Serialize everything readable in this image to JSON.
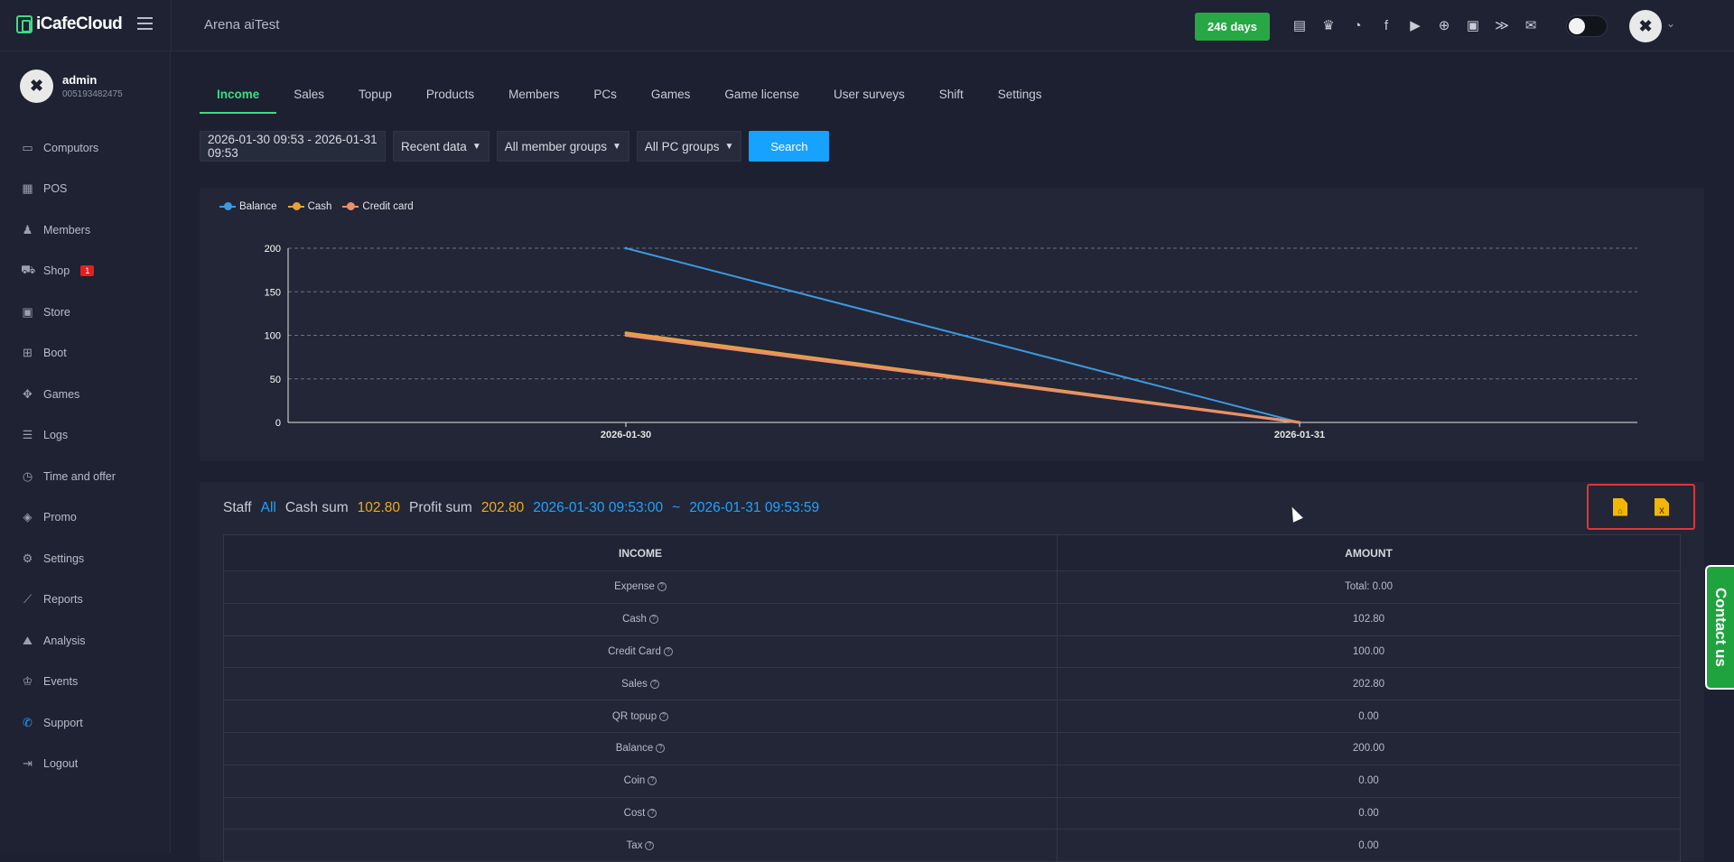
{
  "app": {
    "name": "iCafeCloud",
    "cafe_name": "Arena aiTest",
    "days_badge": "246 days"
  },
  "header_icons": [
    "ranking-icon",
    "trophy-icon",
    "rss-icon",
    "facebook-icon",
    "youtube-icon",
    "globe-icon",
    "icafe-icon",
    "brand-icon",
    "mail-icon"
  ],
  "user": {
    "name": "admin",
    "id": "005193482475"
  },
  "sidebar": {
    "items": [
      {
        "label": "Computors",
        "icon": "monitor-icon"
      },
      {
        "label": "POS",
        "icon": "pos-icon"
      },
      {
        "label": "Members",
        "icon": "members-icon"
      },
      {
        "label": "Shop",
        "icon": "cart-icon",
        "badge": "1"
      },
      {
        "label": "Store",
        "icon": "bag-icon"
      },
      {
        "label": "Boot",
        "icon": "windows-icon"
      },
      {
        "label": "Games",
        "icon": "gamepad-icon"
      },
      {
        "label": "Logs",
        "icon": "list-icon"
      },
      {
        "label": "Time and offer",
        "icon": "timer-icon"
      },
      {
        "label": "Promo",
        "icon": "tag-icon"
      },
      {
        "label": "Settings",
        "icon": "gear-icon"
      },
      {
        "label": "Reports",
        "icon": "chart-line-icon"
      },
      {
        "label": "Analysis",
        "icon": "area-chart-icon"
      },
      {
        "label": "Events",
        "icon": "crown-icon"
      },
      {
        "label": "Support",
        "icon": "phone-icon"
      },
      {
        "label": "Logout",
        "icon": "logout-icon"
      }
    ]
  },
  "tabs": [
    "Income",
    "Sales",
    "Topup",
    "Products",
    "Members",
    "PCs",
    "Games",
    "Game license",
    "User surveys",
    "Shift",
    "Settings"
  ],
  "filters": {
    "date_range": "2026-01-30 09:53 - 2026-01-31 09:53",
    "data": "Recent data",
    "member_groups": "All member groups",
    "pc_groups": "All PC groups",
    "search": "Search"
  },
  "chart_data": {
    "type": "line",
    "x": [
      "2026-01-30",
      "2026-01-31"
    ],
    "series": [
      {
        "name": "Balance",
        "values": [
          200,
          0
        ],
        "color": "#3b9ae1"
      },
      {
        "name": "Cash",
        "values": [
          102.8,
          0
        ],
        "color": "#e7a23a"
      },
      {
        "name": "Credit card",
        "values": [
          100,
          0
        ],
        "color": "#e88f6c"
      }
    ],
    "ylim": [
      0,
      200
    ],
    "yticks": [
      0,
      50,
      100,
      150,
      200
    ],
    "grid": true,
    "legend": "top-left"
  },
  "summary": {
    "staff_label": "Staff",
    "staff_value": "All",
    "cash_label": "Cash sum",
    "cash_value": "102.80",
    "profit_label": "Profit sum",
    "profit_value": "202.80",
    "from": "2026-01-30 09:53:00",
    "tilde": "~",
    "to": "2026-01-31 09:53:59"
  },
  "table": {
    "headers": [
      "INCOME",
      "AMOUNT"
    ],
    "rows": [
      [
        "Expense",
        "Total: 0.00"
      ],
      [
        "Cash",
        "102.80"
      ],
      [
        "Credit Card",
        "100.00"
      ],
      [
        "Sales",
        "202.80"
      ],
      [
        "QR topup",
        "0.00"
      ],
      [
        "Balance",
        "200.00"
      ],
      [
        "Coin",
        "0.00"
      ],
      [
        "Cost",
        "0.00"
      ],
      [
        "Tax",
        "0.00"
      ]
    ]
  },
  "contact": "Contact us"
}
